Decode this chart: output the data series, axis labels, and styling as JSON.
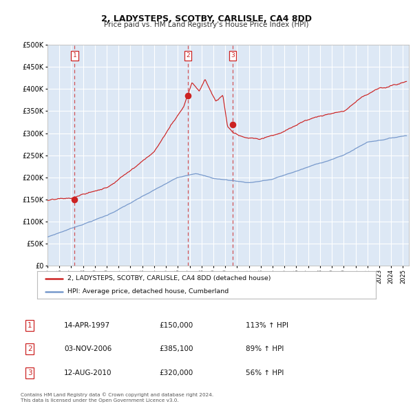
{
  "title": "2, LADYSTEPS, SCOTBY, CARLISLE, CA4 8DD",
  "subtitle": "Price paid vs. HM Land Registry's House Price Index (HPI)",
  "sale1": {
    "date": "14-APR-1997",
    "price": 150000,
    "label": "1",
    "year": 1997.29
  },
  "sale2": {
    "date": "03-NOV-2006",
    "price": 385100,
    "label": "2",
    "year": 2006.84
  },
  "sale3": {
    "date": "12-AUG-2010",
    "price": 320000,
    "label": "3",
    "year": 2010.62
  },
  "red_line_color": "#cc2222",
  "blue_line_color": "#7799cc",
  "bg_color": "#dde8f5",
  "grid_color": "#ffffff",
  "legend_label_red": "2, LADYSTEPS, SCOTBY, CARLISLE, CA4 8DD (detached house)",
  "legend_label_blue": "HPI: Average price, detached house, Cumberland",
  "footer1": "Contains HM Land Registry data © Crown copyright and database right 2024.",
  "footer2": "This data is licensed under the Open Government Licence v3.0.",
  "ylim_max": 500000,
  "xlim_start": 1995.0,
  "xlim_end": 2025.5,
  "table_rows": [
    [
      "1",
      "14-APR-1997",
      "£150,000",
      "113% ↑ HPI"
    ],
    [
      "2",
      "03-NOV-2006",
      "£385,100",
      "89% ↑ HPI"
    ],
    [
      "3",
      "12-AUG-2010",
      "£320,000",
      "56% ↑ HPI"
    ]
  ]
}
